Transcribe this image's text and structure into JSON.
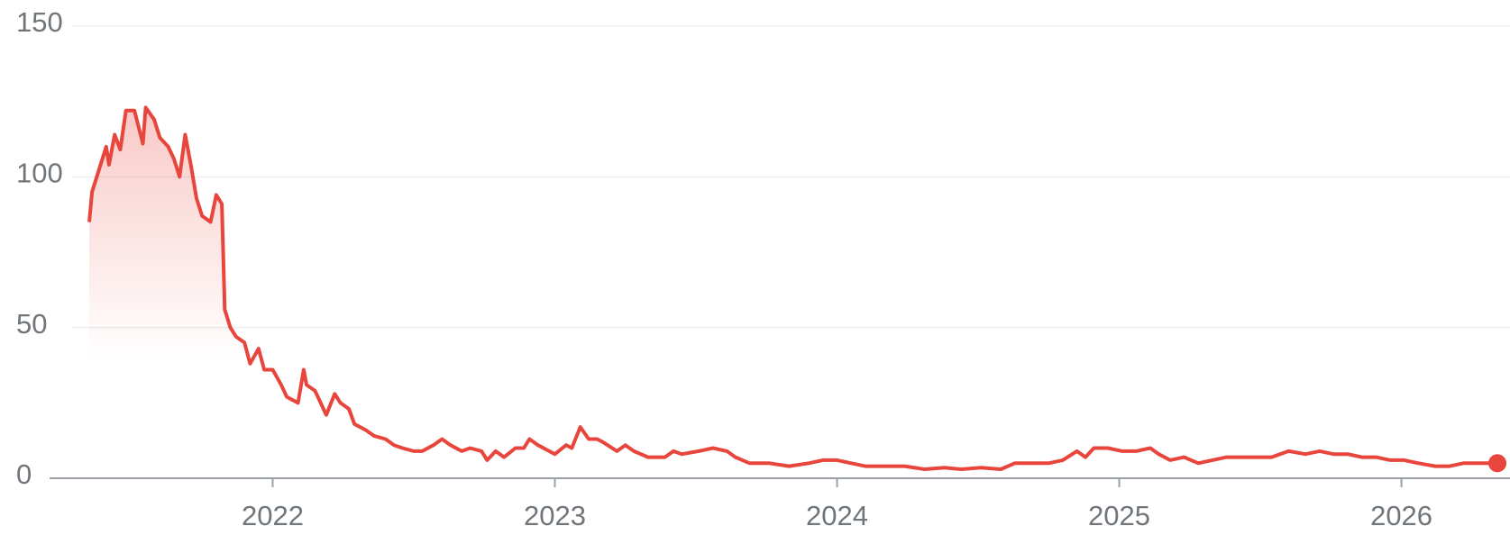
{
  "chart_data": {
    "type": "line",
    "x": [
      2021.35,
      2021.36,
      2021.38,
      2021.41,
      2021.42,
      2021.44,
      2021.46,
      2021.48,
      2021.51,
      2021.54,
      2021.55,
      2021.58,
      2021.6,
      2021.63,
      2021.65,
      2021.67,
      2021.69,
      2021.71,
      2021.73,
      2021.75,
      2021.78,
      2021.8,
      2021.82,
      2021.83,
      2021.85,
      2021.87,
      2021.9,
      2021.92,
      2021.95,
      2021.97,
      2022.0,
      2022.03,
      2022.05,
      2022.09,
      2022.11,
      2022.12,
      2022.15,
      2022.17,
      2022.19,
      2022.22,
      2022.24,
      2022.27,
      2022.29,
      2022.33,
      2022.36,
      2022.4,
      2022.43,
      2022.46,
      2022.5,
      2022.53,
      2022.57,
      2022.6,
      2022.63,
      2022.67,
      2022.7,
      2022.74,
      2022.76,
      2022.79,
      2022.82,
      2022.86,
      2022.89,
      2022.91,
      2022.94,
      2022.98,
      2023.0,
      2023.04,
      2023.06,
      2023.09,
      2023.12,
      2023.15,
      2023.17,
      2023.22,
      2023.25,
      2023.28,
      2023.33,
      2023.39,
      2023.42,
      2023.45,
      2023.51,
      2023.56,
      2023.61,
      2023.64,
      2023.69,
      2023.76,
      2023.83,
      2023.9,
      2023.95,
      2024.0,
      2024.05,
      2024.1,
      2024.17,
      2024.24,
      2024.31,
      2024.38,
      2024.44,
      2024.51,
      2024.58,
      2024.63,
      2024.68,
      2024.75,
      2024.8,
      2024.85,
      2024.88,
      2024.91,
      2024.96,
      2025.01,
      2025.06,
      2025.11,
      2025.14,
      2025.18,
      2025.23,
      2025.28,
      2025.33,
      2025.38,
      2025.43,
      2025.48,
      2025.54,
      2025.6,
      2025.66,
      2025.71,
      2025.76,
      2025.81,
      2025.86,
      2025.91,
      2025.96,
      2026.01,
      2026.06,
      2026.12,
      2026.17,
      2026.22,
      2026.29,
      2026.34
    ],
    "series": [
      {
        "color": "#e8453c",
        "values": [
          85,
          95,
          101,
          110,
          104,
          114,
          109,
          122,
          122,
          111,
          123,
          119,
          113,
          110,
          106,
          100,
          114,
          104,
          93,
          87,
          85,
          94,
          91,
          56,
          50,
          47,
          45,
          38,
          43,
          36,
          36,
          31,
          27,
          25,
          36,
          31,
          29,
          25,
          21,
          28,
          25,
          23,
          18,
          16,
          14,
          13,
          11,
          10,
          9,
          9,
          11,
          13,
          11,
          9,
          10,
          9,
          6,
          9,
          7,
          10,
          10,
          13,
          11,
          9,
          8,
          11,
          10,
          17,
          13,
          13,
          12,
          9,
          11,
          9,
          7,
          7,
          9,
          8,
          9,
          10,
          9,
          7,
          5,
          5,
          4,
          5,
          6,
          6,
          5,
          4,
          4,
          4,
          3,
          3.5,
          3,
          3.5,
          3,
          5,
          5,
          5,
          6,
          9,
          7,
          10,
          10,
          9,
          9,
          10,
          8,
          6,
          7,
          5,
          6,
          7,
          7,
          7,
          7,
          9,
          8,
          9,
          8,
          8,
          7,
          7,
          6,
          6,
          5,
          4,
          4,
          5,
          5,
          5
        ]
      }
    ],
    "xlim": [
      2021.35,
      2026.34
    ],
    "xticks": [
      2022,
      2023,
      2024,
      2025,
      2026
    ],
    "ylim": [
      0,
      150
    ],
    "yticks": [
      0,
      50,
      100,
      150
    ],
    "grid": true
  }
}
